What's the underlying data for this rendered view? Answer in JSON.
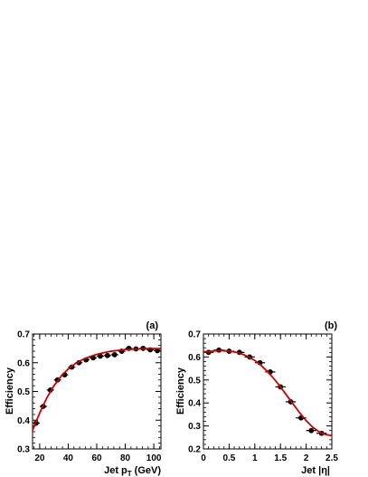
{
  "chart_data": [
    {
      "panel_label": "(a)",
      "type": "scatter",
      "xlabel": "Jet p",
      "xlabel_sub": "T",
      "xlabel_unit": "(GeV)",
      "ylabel": "Efficiency",
      "xlim": [
        15,
        105
      ],
      "ylim": [
        0.3,
        0.7
      ],
      "xticks": [
        20,
        40,
        60,
        80,
        100
      ],
      "yticks": [
        0.3,
        0.4,
        0.5,
        0.6,
        0.7
      ],
      "ytick_labels": [
        "0.3",
        "0.4",
        "0.5",
        "0.6",
        "0.7"
      ],
      "grid": false,
      "fit_color": "#cc0000",
      "points": [
        {
          "x": 17.5,
          "y": 0.39,
          "xerr": 2.5,
          "yerr": 0.01
        },
        {
          "x": 22.5,
          "y": 0.448,
          "xerr": 2.5,
          "yerr": 0.008
        },
        {
          "x": 27.5,
          "y": 0.505,
          "xerr": 2.5,
          "yerr": 0.007
        },
        {
          "x": 32.5,
          "y": 0.54,
          "xerr": 2.5,
          "yerr": 0.006
        },
        {
          "x": 37.5,
          "y": 0.558,
          "xerr": 2.5,
          "yerr": 0.006
        },
        {
          "x": 42.5,
          "y": 0.585,
          "xerr": 2.5,
          "yerr": 0.006
        },
        {
          "x": 47.5,
          "y": 0.6,
          "xerr": 2.5,
          "yerr": 0.006
        },
        {
          "x": 52.5,
          "y": 0.61,
          "xerr": 2.5,
          "yerr": 0.006
        },
        {
          "x": 57.5,
          "y": 0.617,
          "xerr": 2.5,
          "yerr": 0.006
        },
        {
          "x": 62.5,
          "y": 0.623,
          "xerr": 2.5,
          "yerr": 0.006
        },
        {
          "x": 67.5,
          "y": 0.625,
          "xerr": 2.5,
          "yerr": 0.006
        },
        {
          "x": 72.5,
          "y": 0.628,
          "xerr": 2.5,
          "yerr": 0.006
        },
        {
          "x": 77.5,
          "y": 0.64,
          "xerr": 2.5,
          "yerr": 0.006
        },
        {
          "x": 82.5,
          "y": 0.65,
          "xerr": 2.5,
          "yerr": 0.006
        },
        {
          "x": 87.5,
          "y": 0.648,
          "xerr": 2.5,
          "yerr": 0.006
        },
        {
          "x": 92.5,
          "y": 0.65,
          "xerr": 2.5,
          "yerr": 0.006
        },
        {
          "x": 97.5,
          "y": 0.645,
          "xerr": 2.5,
          "yerr": 0.006
        },
        {
          "x": 102.5,
          "y": 0.642,
          "xerr": 2.5,
          "yerr": 0.006
        }
      ],
      "fit": {
        "x": [
          15,
          20,
          25,
          30,
          35,
          40,
          45,
          50,
          55,
          60,
          65,
          70,
          75,
          80,
          85,
          90,
          95,
          100,
          105
        ],
        "y": [
          0.365,
          0.425,
          0.478,
          0.52,
          0.553,
          0.578,
          0.597,
          0.611,
          0.621,
          0.629,
          0.635,
          0.64,
          0.643,
          0.646,
          0.647,
          0.648,
          0.649,
          0.649,
          0.649
        ]
      }
    },
    {
      "panel_label": "(b)",
      "type": "scatter",
      "xlabel": "Jet |η|",
      "ylabel": "Efficiency",
      "xlim": [
        0,
        2.5
      ],
      "ylim": [
        0.2,
        0.7
      ],
      "xticks": [
        0,
        0.5,
        1,
        1.5,
        2,
        2.5
      ],
      "xtick_labels": [
        "0",
        "0.5",
        "1",
        "1.5",
        "2",
        "2.5"
      ],
      "yticks": [
        0.2,
        0.3,
        0.4,
        0.5,
        0.6,
        0.7
      ],
      "ytick_labels": [
        "0.2",
        "0.3",
        "0.4",
        "0.5",
        "0.6",
        "0.7"
      ],
      "grid": false,
      "fit_color": "#cc0000",
      "points": [
        {
          "x": 0.1,
          "y": 0.62,
          "xerr": 0.1,
          "yerr": 0.006
        },
        {
          "x": 0.3,
          "y": 0.63,
          "xerr": 0.1,
          "yerr": 0.006
        },
        {
          "x": 0.5,
          "y": 0.625,
          "xerr": 0.1,
          "yerr": 0.006
        },
        {
          "x": 0.7,
          "y": 0.62,
          "xerr": 0.1,
          "yerr": 0.006
        },
        {
          "x": 0.9,
          "y": 0.6,
          "xerr": 0.1,
          "yerr": 0.006
        },
        {
          "x": 1.1,
          "y": 0.575,
          "xerr": 0.1,
          "yerr": 0.006
        },
        {
          "x": 1.3,
          "y": 0.535,
          "xerr": 0.1,
          "yerr": 0.006
        },
        {
          "x": 1.5,
          "y": 0.47,
          "xerr": 0.1,
          "yerr": 0.007
        },
        {
          "x": 1.7,
          "y": 0.405,
          "xerr": 0.1,
          "yerr": 0.008
        },
        {
          "x": 1.9,
          "y": 0.335,
          "xerr": 0.1,
          "yerr": 0.008
        },
        {
          "x": 2.1,
          "y": 0.28,
          "xerr": 0.1,
          "yerr": 0.009
        },
        {
          "x": 2.3,
          "y": 0.268,
          "xerr": 0.1,
          "yerr": 0.01
        }
      ],
      "fit": {
        "x": [
          0,
          0.125,
          0.25,
          0.375,
          0.5,
          0.625,
          0.75,
          0.875,
          1.0,
          1.125,
          1.25,
          1.375,
          1.5,
          1.625,
          1.75,
          1.875,
          2.0,
          2.125,
          2.25,
          2.375,
          2.5
        ],
        "y": [
          0.622,
          0.624,
          0.627,
          0.628,
          0.626,
          0.621,
          0.613,
          0.601,
          0.585,
          0.563,
          0.536,
          0.505,
          0.47,
          0.432,
          0.394,
          0.357,
          0.323,
          0.295,
          0.275,
          0.263,
          0.258
        ]
      }
    }
  ]
}
